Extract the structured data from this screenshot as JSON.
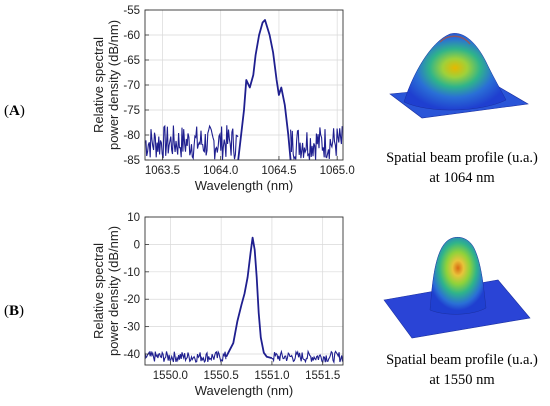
{
  "panels": [
    {
      "label": "A",
      "caption_line1": "Spatial beam profile (u.a.)",
      "caption_line2": "at 1064 nm"
    },
    {
      "label": "B",
      "caption_line1": "Spatial beam profile (u.a.)",
      "caption_line2": "at 1550 nm"
    }
  ],
  "colors": {
    "series": "#1f1f8f",
    "grid": "#d9d9d9",
    "axis": "#333333"
  },
  "chart_data": [
    {
      "type": "line",
      "xlabel": "Wavelength (nm)",
      "ylabel_line1": "Relative spectral",
      "ylabel_line2": "power density (dB/nm)",
      "xlim": [
        1063.35,
        1065.05
      ],
      "ylim": [
        -85,
        -55
      ],
      "xticks": [
        1063.5,
        1064.0,
        1064.5,
        1065.0
      ],
      "xtick_labels": [
        "1063.5",
        "1064.0",
        "1064.5",
        "1065.0"
      ],
      "yticks": [
        -85,
        -80,
        -75,
        -70,
        -65,
        -60,
        -55
      ],
      "ytick_labels": [
        "-85",
        "-80",
        "-75",
        "-70",
        "-65",
        "-60",
        "-55"
      ],
      "grid": true,
      "series": [
        {
          "x": [
            1064.15,
            1064.2,
            1064.22,
            1064.25,
            1064.28,
            1064.3,
            1064.33,
            1064.36,
            1064.38,
            1064.4,
            1064.42,
            1064.45,
            1064.48,
            1064.5,
            1064.52,
            1064.55,
            1064.58,
            1064.6
          ],
          "y": [
            -85,
            -75,
            -69,
            -70.5,
            -68,
            -64,
            -60,
            -57.5,
            -57,
            -58.5,
            -60,
            -63.5,
            -69,
            -72,
            -70.5,
            -74,
            -80,
            -85
          ]
        }
      ],
      "noise_floor": [
        -85,
        -78
      ]
    },
    {
      "type": "line",
      "xlabel": "Wavelength (nm)",
      "ylabel_line1": "Relative spectral",
      "ylabel_line2": "power density (dB/nm)",
      "xlim": [
        1549.75,
        1551.7
      ],
      "ylim": [
        -44,
        10
      ],
      "xticks": [
        1550.0,
        1550.5,
        1551.0,
        1551.5
      ],
      "xtick_labels": [
        "1550.0",
        "1550.5",
        "1551.0",
        "1551.5"
      ],
      "yticks": [
        -40,
        -30,
        -20,
        -10,
        0,
        10
      ],
      "ytick_labels": [
        "-40",
        "-30",
        "-20",
        "-10",
        "0",
        "10"
      ],
      "grid": true,
      "series": [
        {
          "x": [
            1550.55,
            1550.62,
            1550.66,
            1550.7,
            1550.73,
            1550.76,
            1550.79,
            1550.81,
            1550.83,
            1550.85,
            1550.87,
            1550.89,
            1550.92,
            1550.95,
            1551.0
          ],
          "y": [
            -41,
            -36,
            -28,
            -22,
            -18,
            -12,
            -3,
            2.5,
            -2,
            -12,
            -25,
            -34,
            -39.5,
            -41,
            -41.5
          ]
        }
      ],
      "noise_floor": [
        -43,
        -39
      ]
    }
  ]
}
